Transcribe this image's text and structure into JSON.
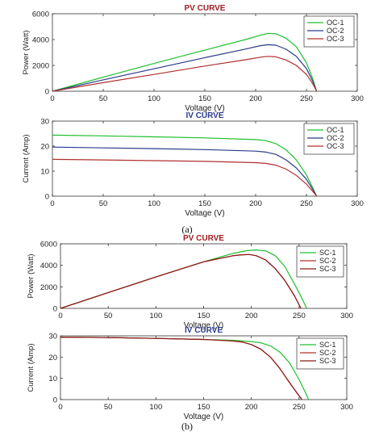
{
  "captions": {
    "a": "(a)",
    "b": "(b)"
  },
  "chart_data": [
    {
      "type": "line",
      "title": "PV CURVE",
      "title_color": "#a11d22",
      "xlabel": "Voltage (V)",
      "ylabel": "Power (Watt)",
      "xlim": [
        0,
        300
      ],
      "ylim": [
        0,
        6000
      ],
      "xticks": [
        "0",
        "50",
        "100",
        "150",
        "200",
        "250",
        "300"
      ],
      "yticks": [
        "0",
        "2000",
        "4000",
        "6000"
      ],
      "grid": false,
      "legend_position": "top-right",
      "series": [
        {
          "name": "OC-1",
          "color": "#1fbf2d",
          "x": [
            0,
            50,
            100,
            150,
            190,
            205,
            212,
            220,
            230,
            240,
            250,
            256,
            260
          ],
          "y": [
            0,
            1090,
            2150,
            3180,
            4000,
            4340,
            4480,
            4450,
            4100,
            3450,
            2200,
            1000,
            0
          ]
        },
        {
          "name": "OC-2",
          "color": "#2a3a8c",
          "x": [
            0,
            50,
            100,
            150,
            190,
            205,
            212,
            220,
            230,
            240,
            250,
            256,
            260
          ],
          "y": [
            0,
            880,
            1740,
            2600,
            3260,
            3530,
            3600,
            3560,
            3250,
            2700,
            1750,
            800,
            0
          ]
        },
        {
          "name": "OC-3",
          "color": "#b0302e",
          "x": [
            0,
            50,
            100,
            150,
            190,
            205,
            212,
            220,
            230,
            240,
            250,
            256,
            260
          ],
          "y": [
            0,
            660,
            1300,
            1950,
            2440,
            2640,
            2700,
            2660,
            2420,
            2000,
            1300,
            600,
            0
          ]
        }
      ]
    },
    {
      "type": "line",
      "title": "IV CURVE",
      "title_color": "#2a3a8c",
      "xlabel": "Voltage (V)",
      "ylabel": "Current (Amp)",
      "xlim": [
        0,
        300
      ],
      "ylim": [
        0,
        30
      ],
      "xticks": [
        "0",
        "50",
        "100",
        "150",
        "200",
        "250",
        "300"
      ],
      "yticks": [
        "0",
        "10",
        "20",
        "30"
      ],
      "grid": false,
      "legend_position": "top-right",
      "series": [
        {
          "name": "OC-1",
          "color": "#1fbf2d",
          "x": [
            0,
            50,
            100,
            150,
            200,
            210,
            220,
            230,
            240,
            250,
            256,
            260
          ],
          "y": [
            24.4,
            24.1,
            23.7,
            23.3,
            22.6,
            22.2,
            21.0,
            18.5,
            14.5,
            8.5,
            3.5,
            0
          ]
        },
        {
          "name": "OC-2",
          "color": "#2a3a8c",
          "x": [
            0,
            50,
            100,
            150,
            200,
            210,
            220,
            230,
            240,
            250,
            256,
            260
          ],
          "y": [
            19.6,
            19.3,
            19.0,
            18.6,
            18.0,
            17.6,
            16.7,
            14.5,
            11.3,
            6.7,
            2.8,
            0
          ]
        },
        {
          "name": "OC-3",
          "color": "#b0302e",
          "x": [
            0,
            50,
            100,
            150,
            200,
            210,
            220,
            230,
            240,
            250,
            256,
            260
          ],
          "y": [
            14.7,
            14.5,
            14.2,
            13.9,
            13.4,
            13.1,
            12.4,
            10.8,
            8.3,
            4.8,
            2.0,
            0
          ]
        }
      ]
    },
    {
      "type": "line",
      "title": "PV CURVE",
      "title_color": "#a11d22",
      "xlabel": "Voltage (V)",
      "ylabel": "Power (Watt)",
      "xlim": [
        0,
        300
      ],
      "ylim": [
        0,
        6000
      ],
      "xticks": [
        "0",
        "50",
        "100",
        "150",
        "200",
        "250",
        "300"
      ],
      "yticks": [
        "0",
        "2000",
        "4000",
        "6000"
      ],
      "grid": false,
      "legend_position": "top-right",
      "series": [
        {
          "name": "SC-1",
          "color": "#1fbf2d",
          "x": [
            0,
            50,
            100,
            150,
            180,
            195,
            205,
            215,
            225,
            235,
            245,
            252,
            258
          ],
          "y": [
            0,
            1470,
            2920,
            4330,
            5090,
            5360,
            5430,
            5350,
            4900,
            3900,
            2300,
            1100,
            0
          ]
        },
        {
          "name": "SC-2",
          "color": "#b0302e",
          "x": [
            0,
            50,
            100,
            150,
            180,
            190,
            198,
            205,
            215,
            225,
            235,
            245,
            252
          ],
          "y": [
            0,
            1470,
            2920,
            4330,
            4880,
            4980,
            5000,
            4900,
            4500,
            3700,
            2600,
            1200,
            0
          ]
        },
        {
          "name": "SC-3",
          "color": "#8b1a1a",
          "x": [
            0,
            50,
            100,
            150,
            180,
            190,
            198,
            205,
            215,
            225,
            235,
            245,
            252
          ],
          "y": [
            0,
            1470,
            2920,
            4330,
            4880,
            4980,
            5000,
            4900,
            4500,
            3700,
            2600,
            1200,
            0
          ]
        }
      ]
    },
    {
      "type": "line",
      "title": "IV CURVE",
      "title_color": "#2a3a8c",
      "xlabel": "Voltage (V)",
      "ylabel": "Current (Amp)",
      "xlim": [
        0,
        300
      ],
      "ylim": [
        0,
        30
      ],
      "xticks": [
        "0",
        "50",
        "100",
        "150",
        "200",
        "250",
        "300"
      ],
      "yticks": [
        "0",
        "10",
        "20",
        "30"
      ],
      "grid": false,
      "legend_position": "top-right",
      "series": [
        {
          "name": "SC-1",
          "color": "#1fbf2d",
          "x": [
            0,
            50,
            100,
            150,
            180,
            200,
            210,
            220,
            230,
            240,
            250,
            256,
            260
          ],
          "y": [
            29.4,
            29.2,
            28.8,
            28.3,
            27.9,
            27.3,
            26.7,
            25.3,
            22.3,
            17.3,
            9.5,
            4.0,
            0
          ]
        },
        {
          "name": "SC-2",
          "color": "#b0302e",
          "x": [
            0,
            50,
            100,
            150,
            180,
            190,
            200,
            210,
            220,
            230,
            240,
            248,
            253
          ],
          "y": [
            29.4,
            29.2,
            28.8,
            28.3,
            27.6,
            27.1,
            25.9,
            23.7,
            20.0,
            14.5,
            8.0,
            3.0,
            0
          ]
        },
        {
          "name": "SC-3",
          "color": "#8b1a1a",
          "x": [
            0,
            50,
            100,
            150,
            180,
            190,
            200,
            210,
            220,
            230,
            240,
            248,
            253
          ],
          "y": [
            29.4,
            29.2,
            28.8,
            28.3,
            27.6,
            27.1,
            25.9,
            23.7,
            20.0,
            14.5,
            8.0,
            3.0,
            0
          ]
        }
      ]
    }
  ]
}
